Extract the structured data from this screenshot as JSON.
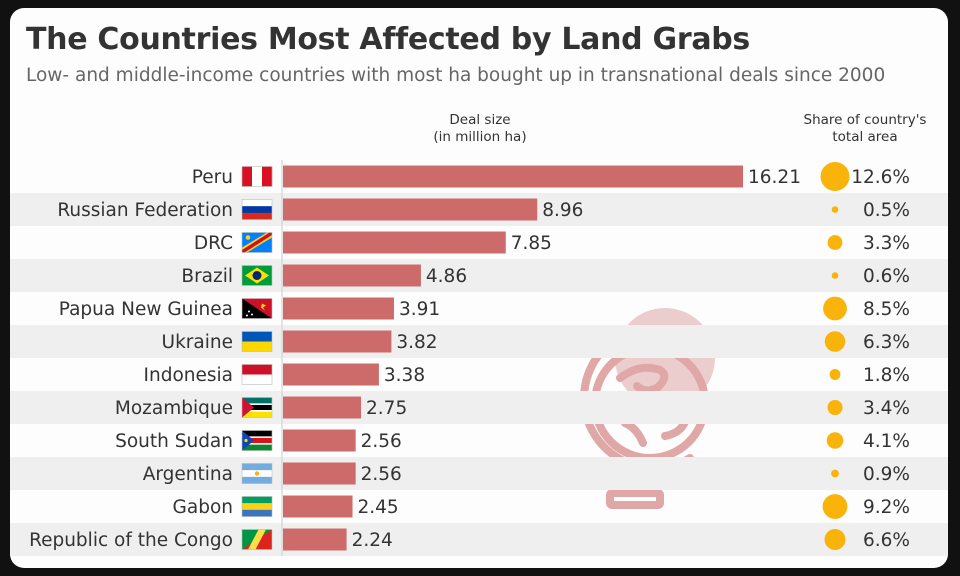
{
  "title": "The Countries Most Affected by Land Grabs",
  "subtitle": "Low- and middle-income countries with most ha bought up in transnational deals since 2000",
  "headers": {
    "deal_line1": "Deal size",
    "deal_line2": "(in million ha)",
    "share_line1": "Share of country's",
    "share_line2": "total area"
  },
  "colors": {
    "bar": "#cd6b6b",
    "dot": "#f9b30b",
    "stripe": "#efefef",
    "logo": "#e0a7a7"
  },
  "chart_data": {
    "type": "bar",
    "orientation": "horizontal",
    "categories": [
      "Peru",
      "Russian Federation",
      "DRC",
      "Brazil",
      "Papua New Guinea",
      "Ukraine",
      "Indonesia",
      "Mozambique",
      "South Sudan",
      "Argentina",
      "Gabon",
      "Republic of the Congo"
    ],
    "flags": [
      "peru-flag-icon",
      "russia-flag-icon",
      "drc-flag-icon",
      "brazil-flag-icon",
      "papua-new-guinea-flag-icon",
      "ukraine-flag-icon",
      "indonesia-flag-icon",
      "mozambique-flag-icon",
      "south-sudan-flag-icon",
      "argentina-flag-icon",
      "gabon-flag-icon",
      "congo-flag-icon"
    ],
    "series": [
      {
        "values": [
          16.21,
          8.96,
          7.85,
          4.86,
          3.91,
          3.82,
          3.38,
          2.75,
          2.56,
          2.56,
          2.45,
          2.24
        ]
      }
    ],
    "value_labels": [
      "16.21",
      "8.96",
      "7.85",
      "4.86",
      "3.91",
      "3.82",
      "3.38",
      "2.75",
      "2.56",
      "2.56",
      "2.45",
      "2.24"
    ],
    "share_values": [
      12.6,
      0.5,
      3.3,
      0.6,
      8.5,
      6.3,
      1.8,
      3.4,
      4.1,
      0.9,
      9.2,
      6.6
    ],
    "share_labels": [
      "12.6%",
      "0.5%",
      "3.3%",
      "0.6%",
      "8.5%",
      "6.3%",
      "1.8%",
      "3.4%",
      "4.1%",
      "0.9%",
      "9.2%",
      "6.6%"
    ],
    "xlim": [
      0,
      16.21
    ],
    "grid": false
  }
}
